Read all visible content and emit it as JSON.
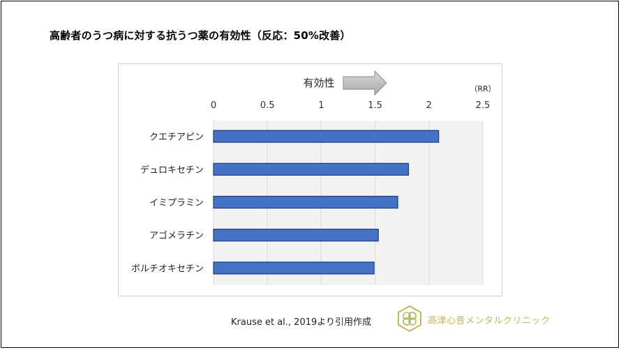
{
  "title": "高齢者のうつ病に対する抗うつ薬の有効性（反応：50%改善）",
  "citation": "Krause et al., 2019より引用作成",
  "clinic_name": "高津心音メンタルクリニック",
  "colors": {
    "bar_fill": "#4472c4",
    "bar_stroke": "#1f3a78",
    "plot_bg": "#f2f2f2",
    "arrow_fill": "#c0c0c0",
    "logo_gold": "#c9b35a",
    "logo_green": "#8db85a"
  },
  "chart_data": {
    "type": "bar",
    "orientation": "horizontal",
    "arrow_label": "有効性",
    "unit_label": "（RR）",
    "xlim": [
      0,
      2.5
    ],
    "x_ticks": [
      "0",
      "0.5",
      "1",
      "1.5",
      "2",
      "2.5"
    ],
    "x_tick_values": [
      0,
      0.5,
      1,
      1.5,
      2,
      2.5
    ],
    "x_axis_position": "top",
    "grid": true,
    "categories": [
      "クエチアピン",
      "デュロキセチン",
      "イミプラミン",
      "アゴメラチン",
      "ボルチオキセチン"
    ],
    "values": [
      2.09,
      1.81,
      1.71,
      1.53,
      1.49
    ]
  }
}
